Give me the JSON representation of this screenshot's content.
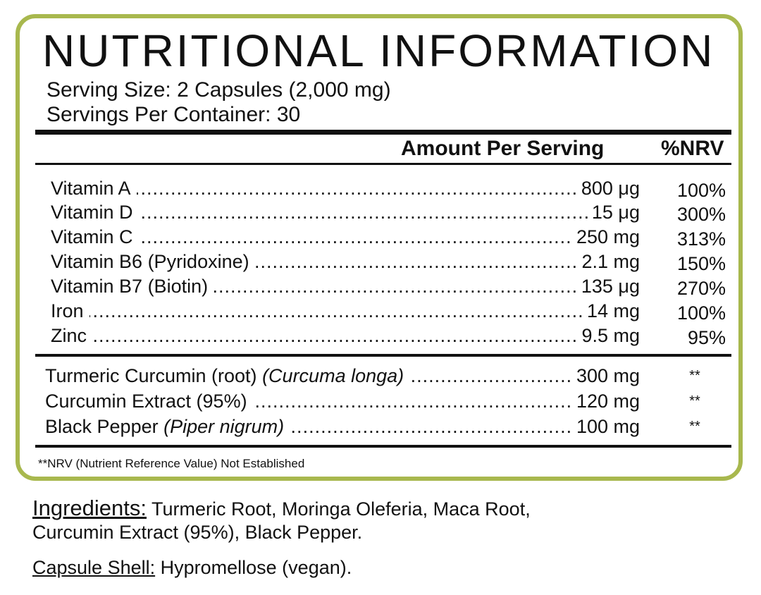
{
  "title": "NUTRITIONAL INFORMATION",
  "serving_size": "Serving Size: 2 Capsules (2,000 mg)",
  "servings_per_container": "Servings Per Container: 30",
  "header": {
    "amount": "Amount Per Serving",
    "nrv": "%NRV"
  },
  "dots": "............................................................................................................................................................................",
  "vitamins": [
    {
      "name": "Vitamin A",
      "amount": "800 μg",
      "nrv": "100%"
    },
    {
      "name": "Vitamin D",
      "amount": "15 μg",
      "nrv": "300%"
    },
    {
      "name": "Vitamin C",
      "amount": "250 mg",
      "nrv": "313%"
    },
    {
      "name": "Vitamin B6 (Pyridoxine)",
      "amount": "2.1 mg",
      "nrv": "150%"
    },
    {
      "name": "Vitamin B7 (Biotin)",
      "amount": "135 μg",
      "nrv": "270%"
    },
    {
      "name": "Iron",
      "amount": "14 mg",
      "nrv": "100%"
    },
    {
      "name": "Zinc",
      "amount": "9.5 mg",
      "nrv": "95%"
    }
  ],
  "herbals": [
    {
      "name": "Turmeric Curcumin (root)",
      "latin": "(Curcuma longa)",
      "amount": "300 mg",
      "nrv": "**"
    },
    {
      "name": "Curcumin Extract (95%)",
      "latin": "",
      "amount": "120 mg",
      "nrv": "**"
    },
    {
      "name": "Black Pepper",
      "latin": "(Piper nigrum)",
      "amount": "100 mg",
      "nrv": "**"
    }
  ],
  "footnote": "**NRV (Nutrient Reference Value) Not Established",
  "ingredients": {
    "label": "Ingredients:",
    "line1": "Turmeric Root, Moringa Oleferia, Maca Root,",
    "line2": "Curcumin Extract (95%), Black Pepper."
  },
  "capsule_shell": {
    "label": "Capsule Shell:",
    "text": "Hypromellose (vegan)."
  },
  "colors": {
    "border": "#a8b84e",
    "text": "#111111"
  }
}
